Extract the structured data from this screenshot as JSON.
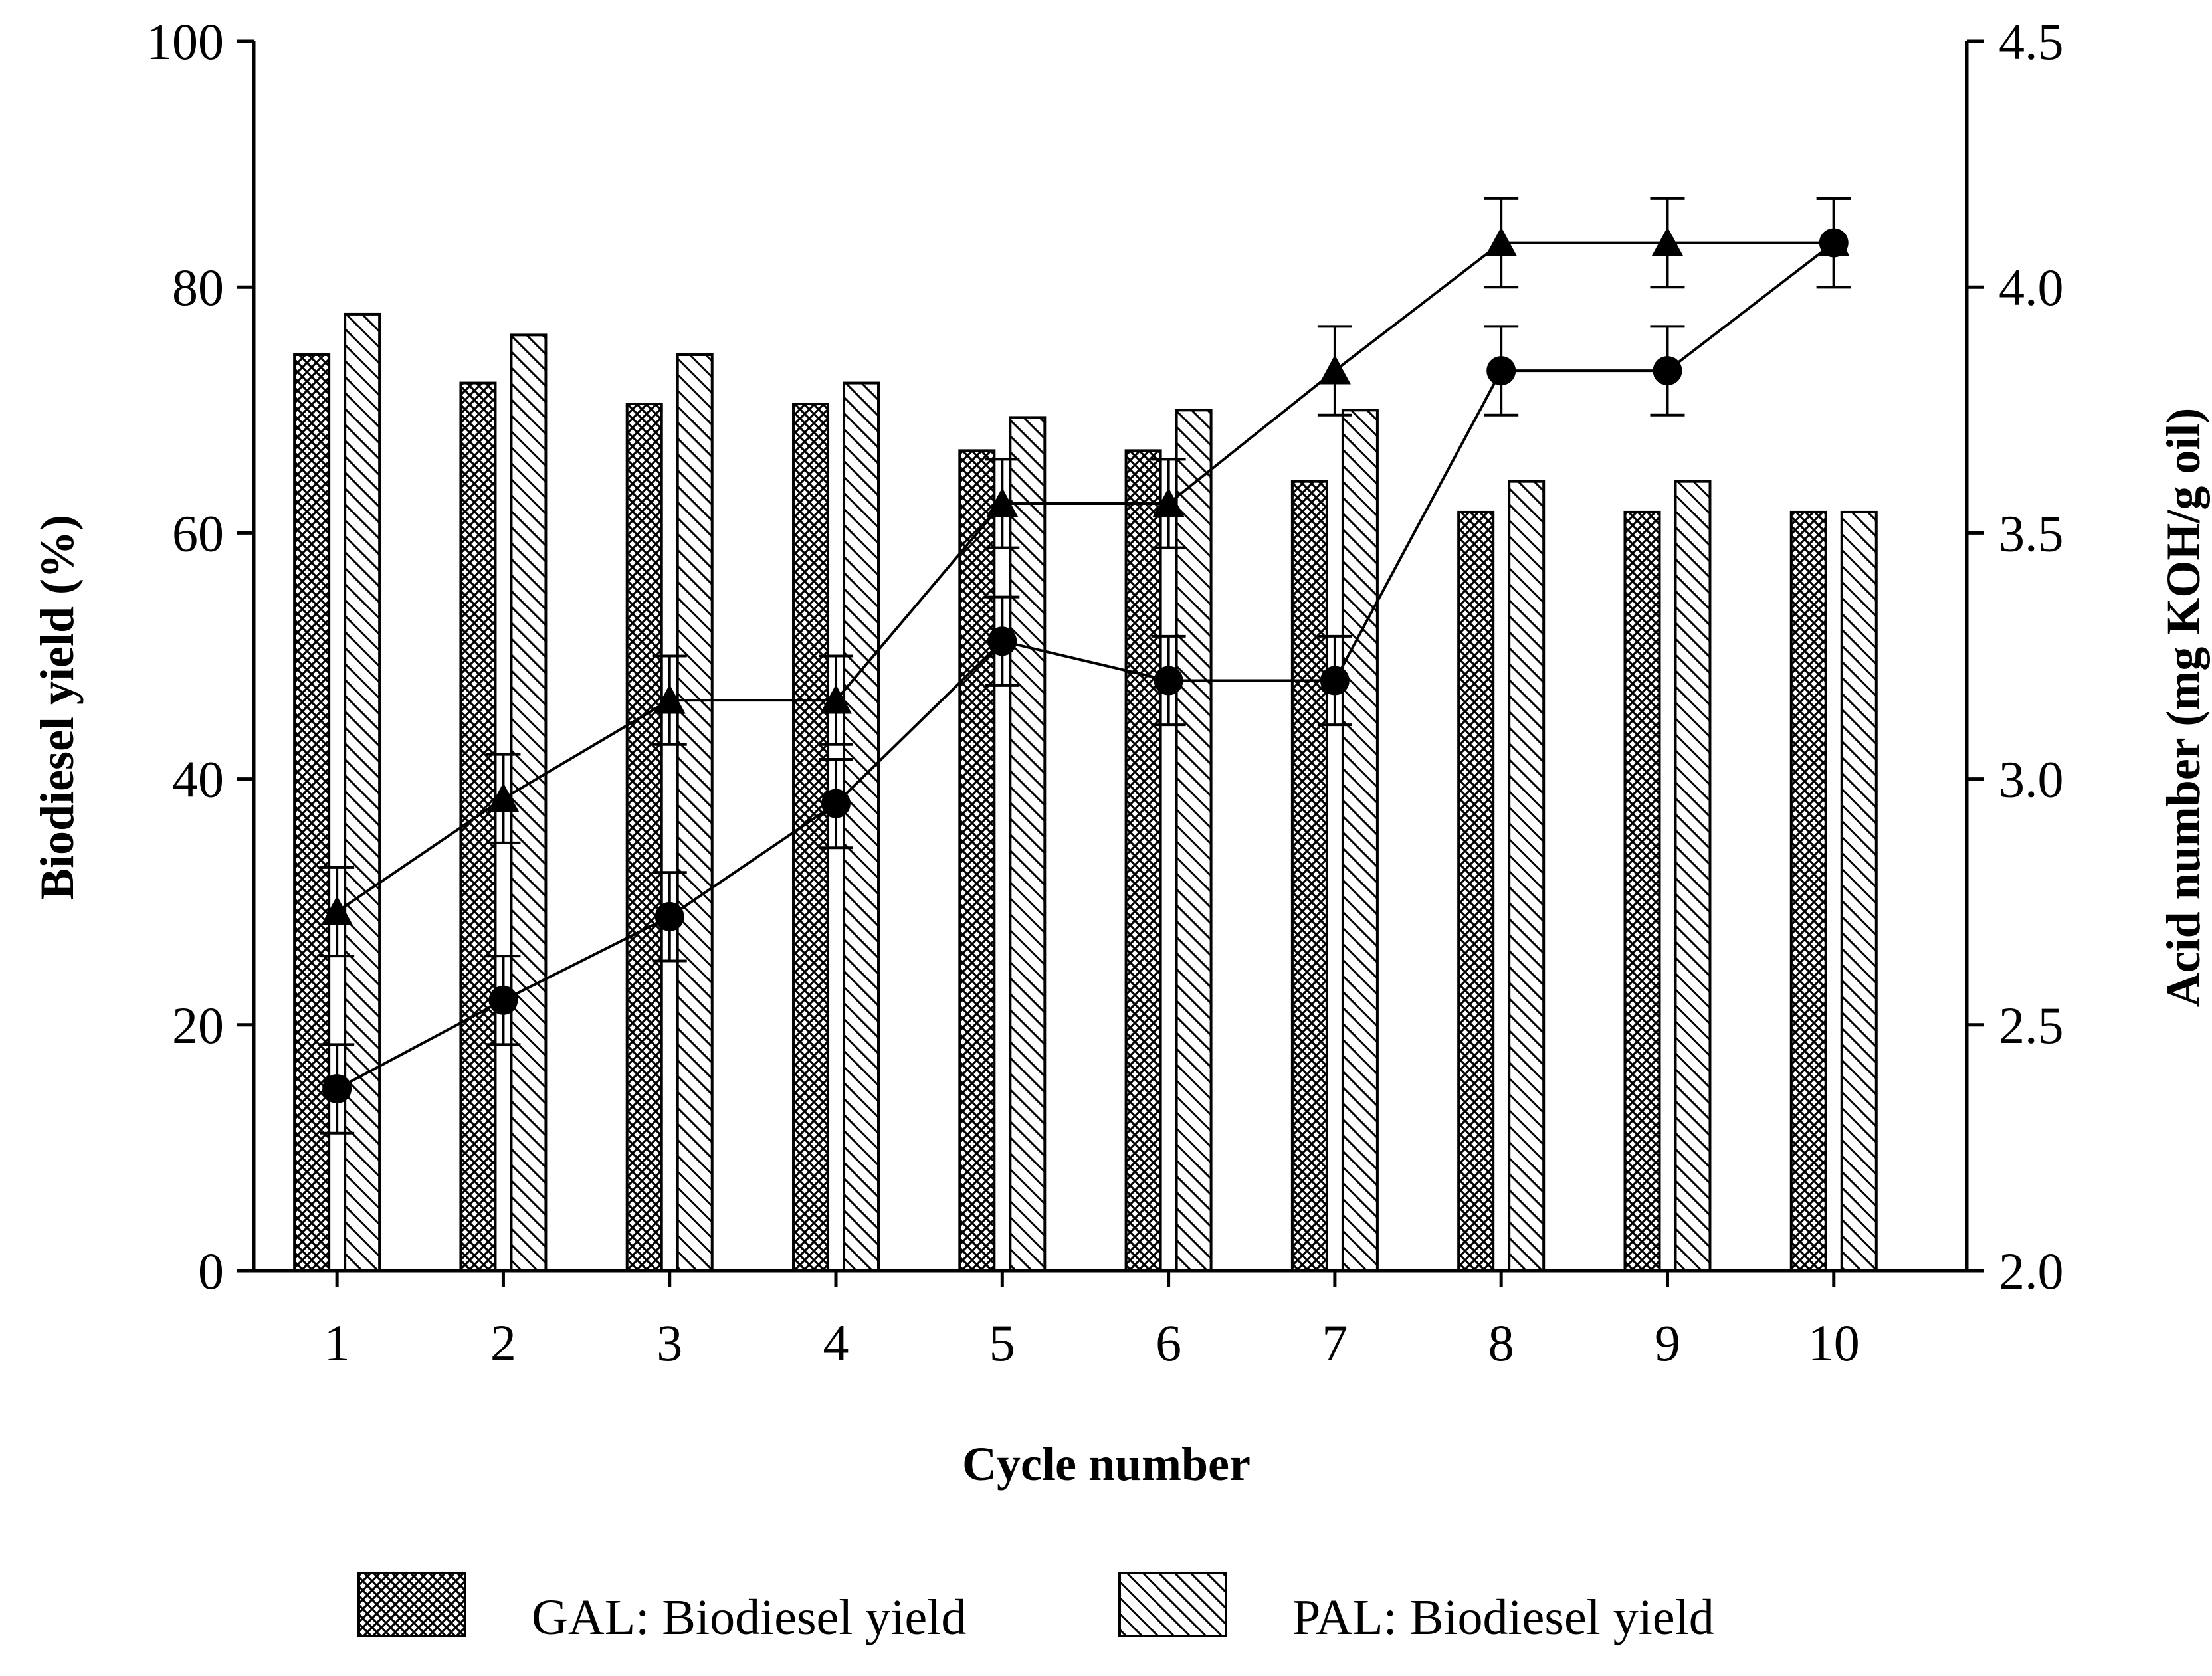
{
  "chart_data": {
    "type": "bar",
    "xlabel": "Cycle number",
    "ylabel": "Biodiesel yield (%)",
    "y2label": "Acid number (mg KOH/g oil)",
    "categories": [
      "1",
      "2",
      "3",
      "4",
      "5",
      "6",
      "7",
      "8",
      "9",
      "10"
    ],
    "ylim": [
      0,
      100
    ],
    "yticks": [
      "0",
      "20",
      "40",
      "60",
      "80",
      "100"
    ],
    "y2lim": [
      2.0,
      4.5
    ],
    "y2ticks": [
      "2.0",
      "2.5",
      "3.0",
      "3.5",
      "4.0",
      "4.5"
    ],
    "grid": false,
    "legend_position": "bottom",
    "bar_series": [
      {
        "name": "GAL: Biodiesel yield",
        "pattern": "crosshatch",
        "values": [
          74.5,
          72.2,
          70.5,
          70.5,
          66.7,
          66.7,
          64.2,
          61.7,
          61.7,
          61.7
        ]
      },
      {
        "name": "PAL: Biodiesel yield",
        "pattern": "diagonal",
        "values": [
          77.8,
          76.1,
          74.5,
          72.2,
          69.4,
          70.0,
          70.0,
          64.2,
          64.2,
          61.7
        ]
      }
    ],
    "line_series": [
      {
        "name": "Acid number (triangle)",
        "marker": "triangle",
        "axis": "right",
        "values": [
          2.73,
          2.96,
          3.16,
          3.16,
          3.56,
          3.56,
          3.83,
          4.09,
          4.09,
          4.09
        ],
        "errors": [
          0.09,
          0.09,
          0.09,
          0.09,
          0.09,
          0.09,
          0.09,
          0.09,
          0.09,
          0.09
        ]
      },
      {
        "name": "Acid number (circle)",
        "marker": "circle",
        "axis": "right",
        "values": [
          2.37,
          2.55,
          2.72,
          2.95,
          3.28,
          3.2,
          3.2,
          3.83,
          3.83,
          4.09
        ],
        "errors": [
          0.09,
          0.09,
          0.09,
          0.09,
          0.09,
          0.09,
          0.09,
          0.09,
          0.09,
          0.09
        ]
      }
    ],
    "colors": {
      "ink": "#000000",
      "background": "#ffffff"
    }
  }
}
